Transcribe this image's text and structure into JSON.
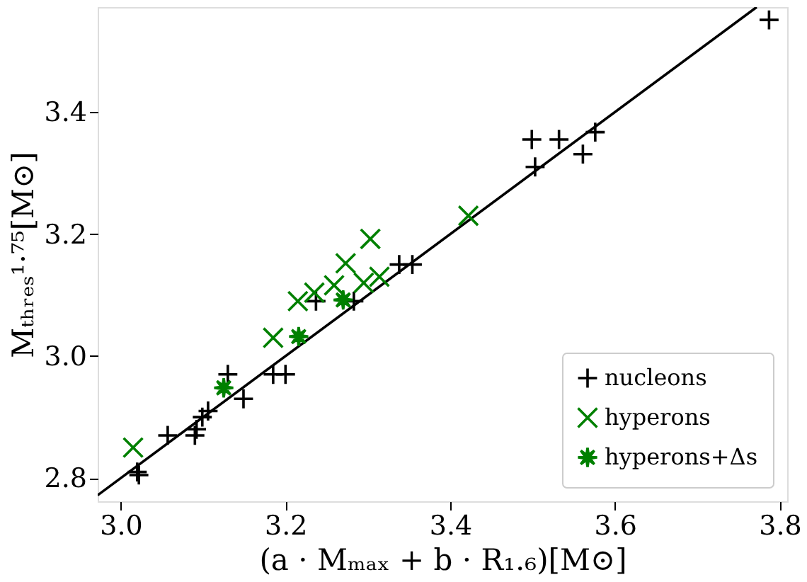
{
  "chart_data": {
    "type": "scatter",
    "xlabel": "(a · Mₘₐₓ + b · R₁.₆)[M⊙]",
    "ylabel": "Mₜₕᵣₑₛ¹·⁷⁵[M⊙]",
    "xlim": [
      2.972,
      3.809
    ],
    "ylim": [
      2.762,
      3.572
    ],
    "xticks": [
      {
        "value": 3,
        "label": "3.0"
      },
      3.2,
      3.4,
      3.6,
      3.8
    ],
    "yticks": [
      2.8,
      {
        "value": 3,
        "label": "3.0"
      },
      3.2,
      3.4
    ],
    "grid": false,
    "legend": "bottom right",
    "series": [
      {
        "type": "line",
        "color": "#000000",
        "line_style": "solid",
        "x": [
          2.972,
          3.772
        ],
        "values": [
          2.772,
          3.572
        ]
      },
      {
        "name": "nucleons",
        "color": "#000000",
        "marker": "cross",
        "x": [
          3.02,
          3.022,
          3.057,
          3.09,
          3.092,
          3.099,
          3.106,
          3.13,
          3.149,
          3.185,
          3.2,
          3.237,
          3.283,
          3.338,
          3.354,
          3.499,
          3.532,
          3.576,
          3.503,
          3.561,
          3.787
        ],
        "values": [
          2.81,
          2.805,
          2.87,
          2.87,
          2.88,
          2.9,
          2.91,
          2.97,
          2.93,
          2.97,
          2.97,
          3.09,
          3.09,
          3.15,
          3.15,
          3.355,
          3.355,
          3.367,
          3.31,
          3.331,
          3.551
        ]
      },
      {
        "name": "hyperons",
        "color": "#008000",
        "marker": "x",
        "x": [
          3.015,
          3.185,
          3.215,
          3.235,
          3.259,
          3.273,
          3.303,
          3.295,
          3.314,
          3.422
        ],
        "values": [
          2.85,
          3.03,
          3.09,
          3.104,
          3.116,
          3.152,
          3.192,
          3.12,
          3.13,
          3.23
        ]
      },
      {
        "name": "hyperons+Δs",
        "color": "#008000",
        "marker": "star",
        "x": [
          3.125,
          3.216,
          3.27
        ],
        "values": [
          2.948,
          3.032,
          3.092
        ]
      }
    ]
  }
}
